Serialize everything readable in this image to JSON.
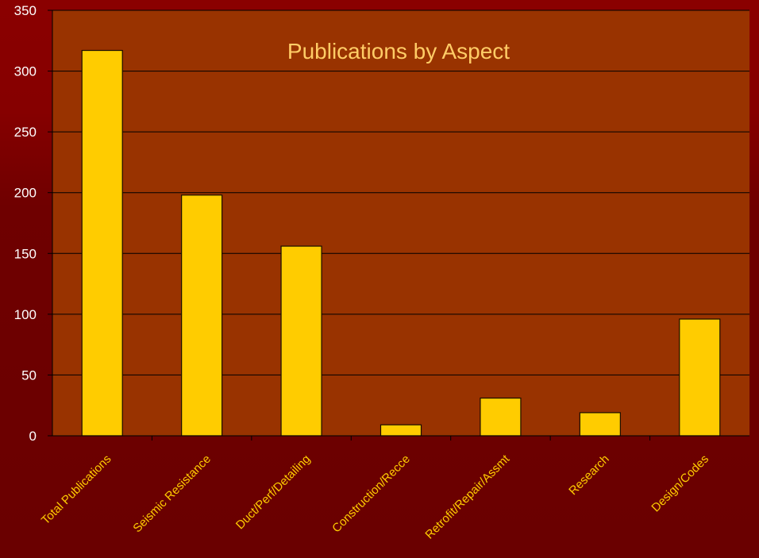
{
  "colors": {
    "plot_background": "#993300",
    "bar_fill": "#ffcc00",
    "bar_stroke": "#1a0d00",
    "gridline": "#000000",
    "tick_label": "#ffffff",
    "category_label": "#ffcc00",
    "title": "#ffcc66"
  },
  "chart_data": {
    "type": "bar",
    "title": "Publications by Aspect",
    "xlabel": "",
    "ylabel": "",
    "ylim": [
      0,
      350
    ],
    "yticks": [
      0,
      50,
      100,
      150,
      200,
      250,
      300,
      350
    ],
    "grid": true,
    "legend": "none",
    "categories": [
      "Total Publications",
      "Seismic Resistance",
      "Duct/Perf/Detailing",
      "Construction/Recce",
      "Retrofit/Repair/Assmt",
      "Research",
      "Design/Codes"
    ],
    "values": [
      317,
      198,
      156,
      9,
      31,
      19,
      96
    ]
  }
}
